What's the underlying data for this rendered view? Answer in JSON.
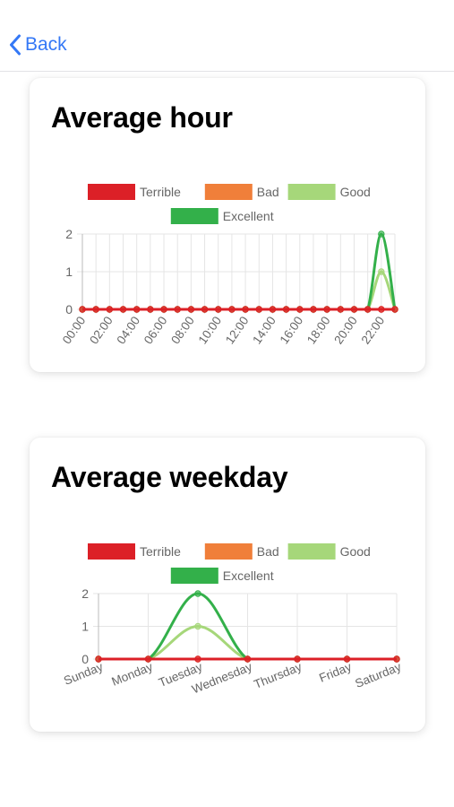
{
  "nav": {
    "back_label": "Back"
  },
  "colors": {
    "Terrible": "#dc2027",
    "Bad": "#f07f3a",
    "Good": "#a6d77a",
    "Excellent": "#33b04a"
  },
  "hour_card": {
    "title": "Average hour",
    "chart_data": {
      "type": "line",
      "legend": [
        "Terrible",
        "Bad",
        "Good",
        "Excellent"
      ],
      "legend_position": "top",
      "grid": true,
      "ylim": [
        0,
        2
      ],
      "yticks": [
        "0",
        "1",
        "2"
      ],
      "categories": [
        "00:00",
        "01:00",
        "02:00",
        "03:00",
        "04:00",
        "05:00",
        "06:00",
        "07:00",
        "08:00",
        "09:00",
        "10:00",
        "11:00",
        "12:00",
        "13:00",
        "14:00",
        "15:00",
        "16:00",
        "17:00",
        "18:00",
        "19:00",
        "20:00",
        "21:00",
        "22:00",
        "23:00"
      ],
      "tick_labels": [
        "00:00",
        "02:00",
        "04:00",
        "06:00",
        "08:00",
        "10:00",
        "12:00",
        "14:00",
        "16:00",
        "18:00",
        "20:00",
        "22:00"
      ],
      "series": [
        {
          "name": "Terrible",
          "values": [
            0,
            0,
            0,
            0,
            0,
            0,
            0,
            0,
            0,
            0,
            0,
            0,
            0,
            0,
            0,
            0,
            0,
            0,
            0,
            0,
            0,
            0,
            0,
            0
          ]
        },
        {
          "name": "Bad",
          "values": [
            0,
            0,
            0,
            0,
            0,
            0,
            0,
            0,
            0,
            0,
            0,
            0,
            0,
            0,
            0,
            0,
            0,
            0,
            0,
            0,
            0,
            0,
            0,
            0
          ]
        },
        {
          "name": "Good",
          "values": [
            0,
            0,
            0,
            0,
            0,
            0,
            0,
            0,
            0,
            0,
            0,
            0,
            0,
            0,
            0,
            0,
            0,
            0,
            0,
            0,
            0,
            0,
            1,
            0
          ]
        },
        {
          "name": "Excellent",
          "values": [
            0,
            0,
            0,
            0,
            0,
            0,
            0,
            0,
            0,
            0,
            0,
            0,
            0,
            0,
            0,
            0,
            0,
            0,
            0,
            0,
            0,
            0,
            2,
            0
          ]
        }
      ]
    }
  },
  "weekday_card": {
    "title": "Average weekday",
    "chart_data": {
      "type": "line",
      "legend": [
        "Terrible",
        "Bad",
        "Good",
        "Excellent"
      ],
      "legend_position": "top",
      "grid": true,
      "ylim": [
        0,
        2
      ],
      "yticks": [
        "0",
        "1",
        "2"
      ],
      "categories": [
        "Sunday",
        "Monday",
        "Tuesday",
        "Wednesday",
        "Thursday",
        "Friday",
        "Saturday"
      ],
      "tick_labels": [
        "Sunday",
        "Monday",
        "Tuesday",
        "Wednesday",
        "Thursday",
        "Friday",
        "Saturday"
      ],
      "series": [
        {
          "name": "Terrible",
          "values": [
            0,
            0,
            0,
            0,
            0,
            0,
            0
          ]
        },
        {
          "name": "Bad",
          "values": [
            0,
            0,
            0,
            0,
            0,
            0,
            0
          ]
        },
        {
          "name": "Good",
          "values": [
            0,
            0,
            1,
            0,
            0,
            0,
            0
          ]
        },
        {
          "name": "Excellent",
          "values": [
            0,
            0,
            2,
            0,
            0,
            0,
            0
          ]
        }
      ]
    }
  }
}
